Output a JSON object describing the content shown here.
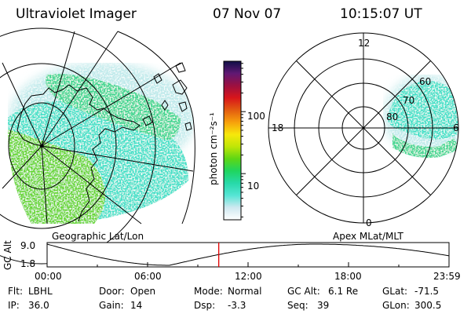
{
  "header": {
    "instrument": "Ultraviolet Imager",
    "date": "07 Nov 07",
    "time": "10:15:07 UT"
  },
  "colorbar": {
    "unit_label": "photon cm⁻²s⁻¹",
    "ticks": [
      {
        "label": "100",
        "value": 100
      },
      {
        "label": "10",
        "value": 10
      }
    ],
    "colors": [
      "#ffffff",
      "#cfe8f0",
      "#55e5d5",
      "#27d9a9",
      "#1fd55f",
      "#5ed614",
      "#c0e607",
      "#f7e80b",
      "#f7a00c",
      "#e25c10",
      "#d8151a",
      "#9c1040",
      "#601873",
      "#101048"
    ]
  },
  "left_map": {
    "caption": "Geographic Lat/Lon",
    "glow_colors": [
      "#3cd690",
      "#66d632",
      "#40e0c8",
      "#bde9ea"
    ]
  },
  "right_map": {
    "caption": "Apex MLat/MLT",
    "mlt_labels": {
      "top": "12",
      "left": "18",
      "right": "6",
      "bottom": "0"
    },
    "mlat_labels": [
      "60",
      "70",
      "80"
    ]
  },
  "altitude_plot": {
    "ylabel": "GC Alt",
    "y_ticks": [
      "9.0",
      "1.8"
    ],
    "x_ticks": [
      "00:00",
      "06:00",
      "12:00",
      "18:00",
      "23:59"
    ],
    "current_time_hours": 10.25,
    "curve_color": "#000000",
    "marker_color": "#e00000"
  },
  "info": {
    "rows": [
      [
        {
          "key": "Flt:",
          "value": "LBHL"
        },
        {
          "key": "Door:",
          "value": "Open"
        },
        {
          "key": "Mode:",
          "value": "Normal"
        },
        {
          "key": "GC Alt:",
          "value": "6.1 Re"
        },
        {
          "key": "GLat:",
          "value": "-71.5"
        }
      ],
      [
        {
          "key": "IP:",
          "value": "36.0"
        },
        {
          "key": "Gain:",
          "value": "14"
        },
        {
          "key": "Dsp:",
          "value": "-3.3"
        },
        {
          "key": "Seq:",
          "value": "39"
        },
        {
          "key": "GLon:",
          "value": "300.5"
        }
      ]
    ]
  }
}
